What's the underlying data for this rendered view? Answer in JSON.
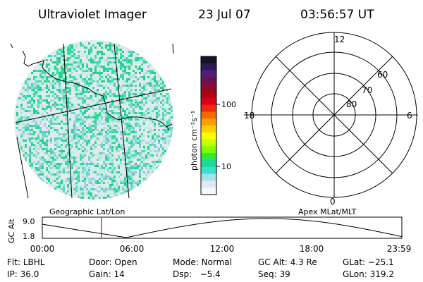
{
  "header": {
    "title": "Ultraviolet Imager",
    "date": "23 Jul 07",
    "time": "03:56:57 UT"
  },
  "colorbar": {
    "unit_label": "photon cm⁻²s⁻¹",
    "tick_labels": [
      "100",
      "10"
    ],
    "colors_top_to_bottom": [
      "#141428",
      "#2e1a55",
      "#4f1f7a",
      "#6e0f55",
      "#8c0a2b",
      "#b00012",
      "#d8001a",
      "#ef2a0b",
      "#f56a00",
      "#ff9e00",
      "#ffd000",
      "#ffff00",
      "#c8ff00",
      "#7aff00",
      "#2ee83a",
      "#1ed898",
      "#37e0d0",
      "#a6e0e8",
      "#dfe9ee",
      "#f6f7fa"
    ]
  },
  "polar": {
    "mlt_labels": {
      "top": "12",
      "left": "18",
      "right": "6",
      "bottom": "0"
    },
    "lat_labels": [
      "60",
      "70",
      "80"
    ]
  },
  "panel_labels": {
    "left": "Geographic Lat/Lon",
    "right": "Apex MLat/MLT"
  },
  "altitude_plot": {
    "ylabel": "GC Alt",
    "y_ticks": [
      "9.0",
      "1.8"
    ],
    "x_ticks": [
      "00:00",
      "06:00",
      "12:00",
      "18:00",
      "23:59"
    ],
    "current_time_hours": 3.95,
    "marker_color": "#cc0000"
  },
  "info_rows": [
    [
      {
        "label": "Flt:",
        "value": "LBHL"
      },
      {
        "label": "Door:",
        "value": "Open"
      },
      {
        "label": "Mode:",
        "value": "Normal"
      },
      {
        "label": "GC Alt:",
        "value": "4.3 Re"
      },
      {
        "label": "GLat:",
        "value": "−25.1"
      }
    ],
    [
      {
        "label": "IP:",
        "value": "36.0"
      },
      {
        "label": "Gain:",
        "value": "14"
      },
      {
        "label": "Dsp:",
        "value": "  −5.4"
      },
      {
        "label": "Seq:",
        "value": "39"
      },
      {
        "label": "GLon:",
        "value": "319.2"
      }
    ]
  ]
}
